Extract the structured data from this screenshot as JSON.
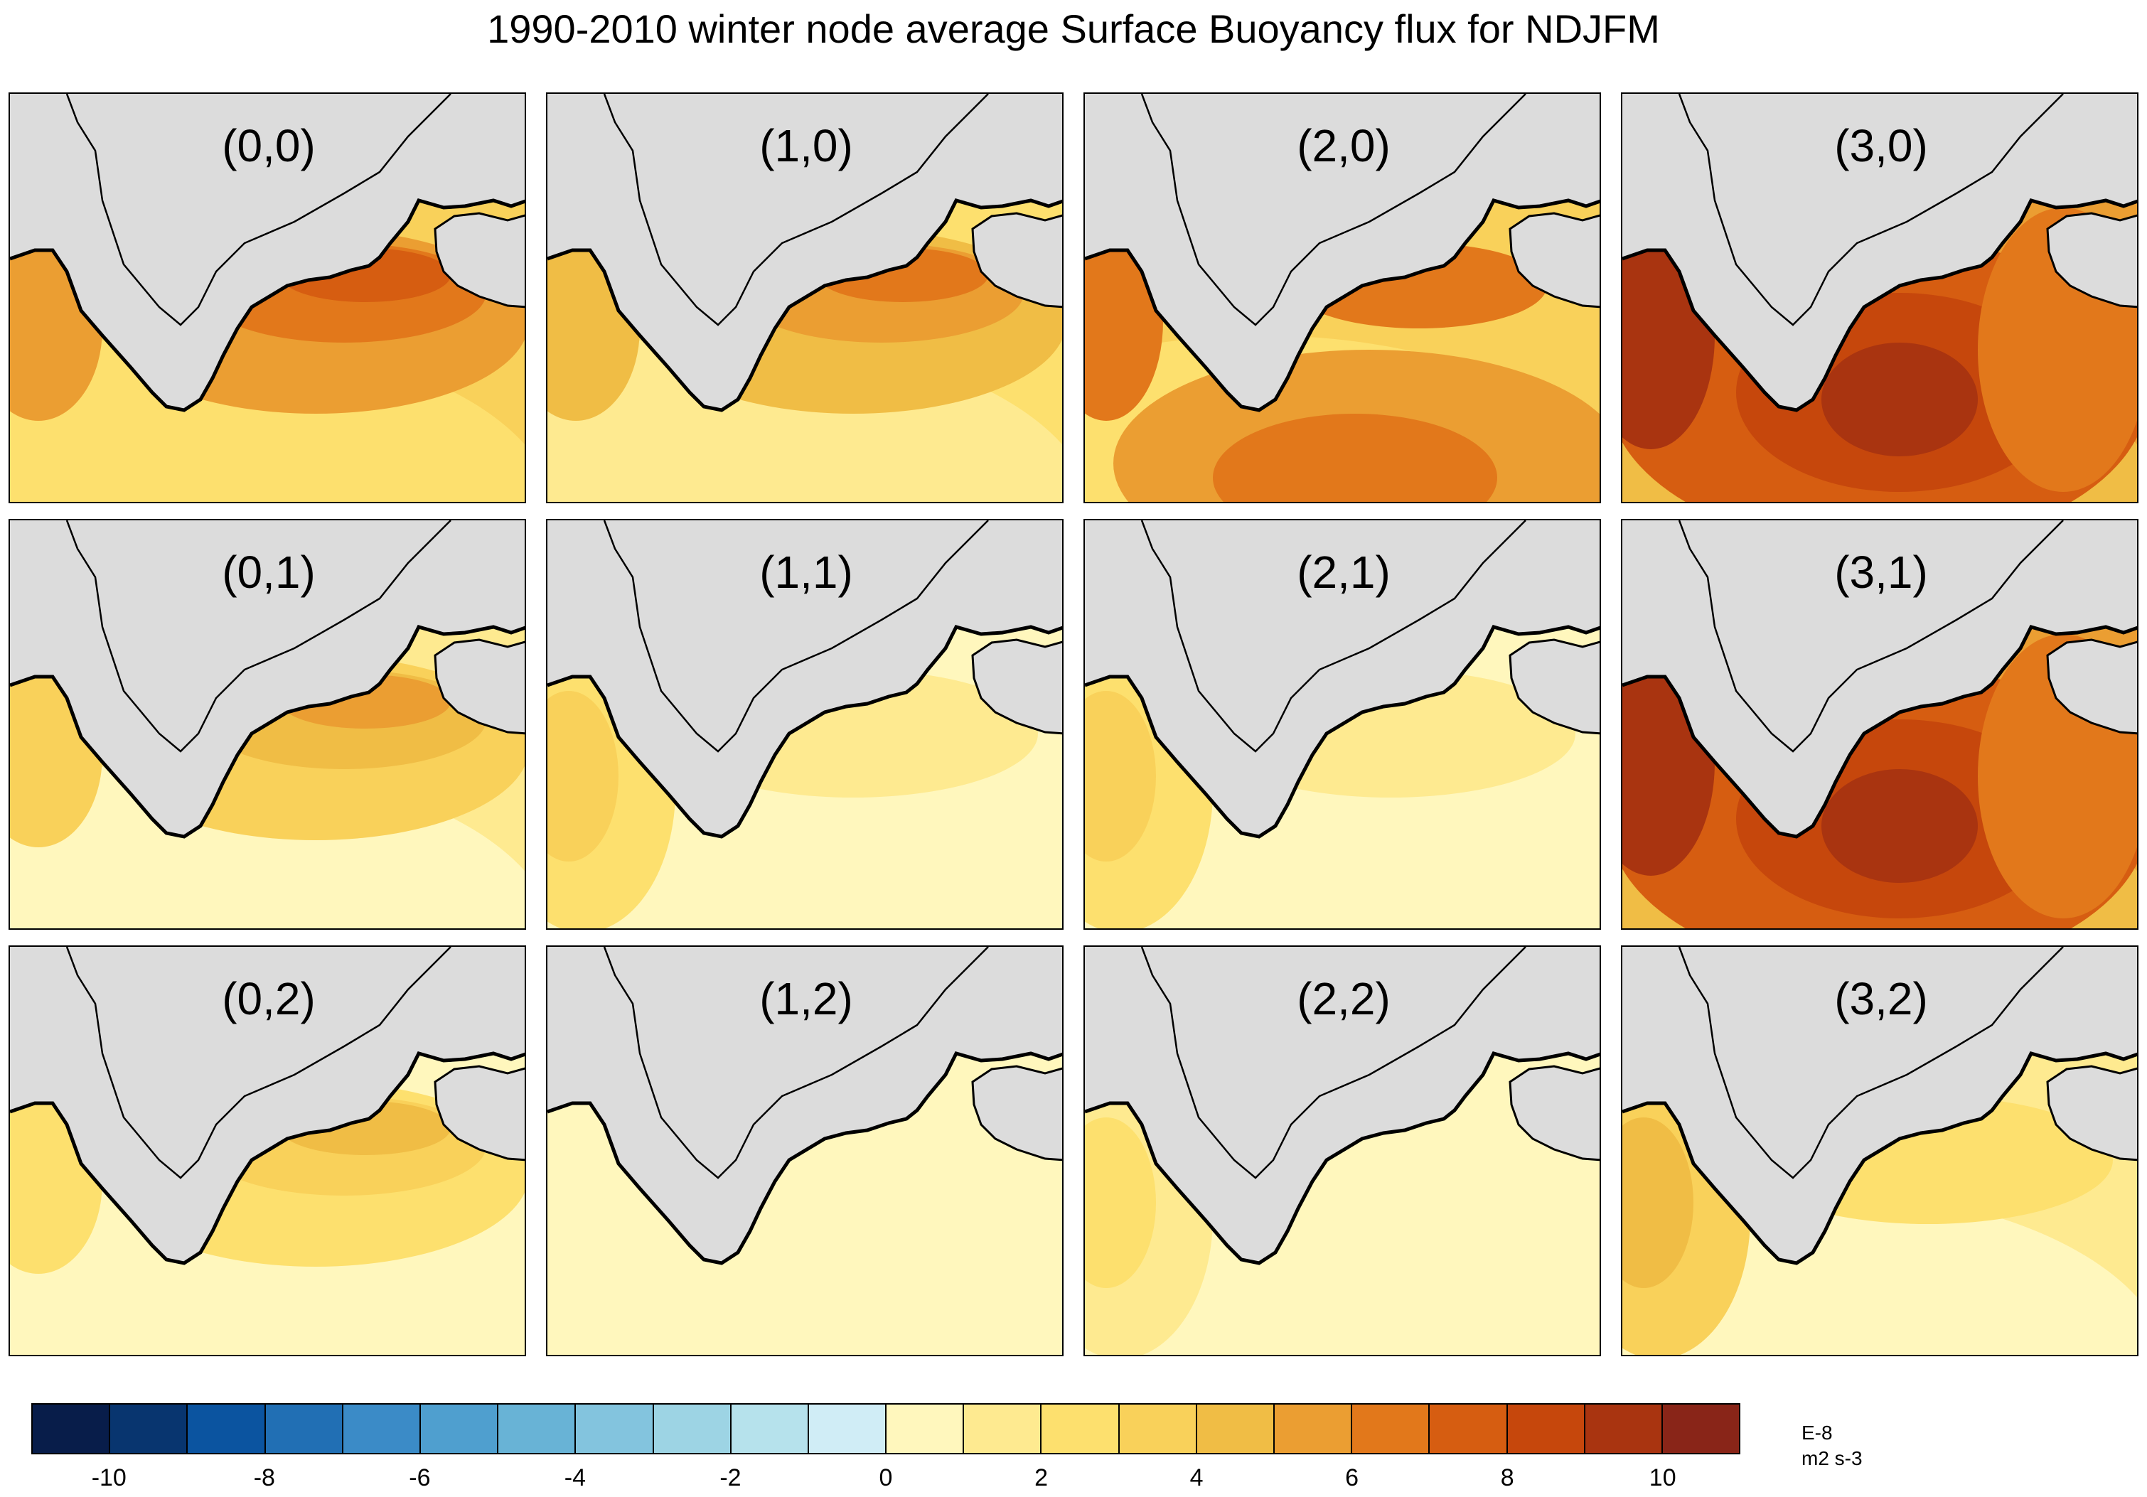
{
  "title": "1990-2010 winter node average Surface Buoyancy flux for NDJFM",
  "panels": [
    {
      "label": "(0,0)",
      "intensity": 7,
      "hot": "shelf"
    },
    {
      "label": "(1,0)",
      "intensity": 6,
      "hot": "shelf"
    },
    {
      "label": "(2,0)",
      "intensity": 7,
      "hot": "south"
    },
    {
      "label": "(3,0)",
      "intensity": 9,
      "hot": "center"
    },
    {
      "label": "(0,1)",
      "intensity": 5,
      "hot": "shelf"
    },
    {
      "label": "(1,1)",
      "intensity": 4,
      "hot": "west"
    },
    {
      "label": "(2,1)",
      "intensity": 4,
      "hot": "west"
    },
    {
      "label": "(3,1)",
      "intensity": 9,
      "hot": "center"
    },
    {
      "label": "(0,2)",
      "intensity": 4,
      "hot": "shelf"
    },
    {
      "label": "(1,2)",
      "intensity": 2,
      "hot": "none"
    },
    {
      "label": "(2,2)",
      "intensity": 3,
      "hot": "west"
    },
    {
      "label": "(3,2)",
      "intensity": 5,
      "hot": "west"
    }
  ],
  "colorbar": {
    "colors": [
      "#081d4a",
      "#08356f",
      "#0b54a0",
      "#216fb4",
      "#3b8bc7",
      "#4f9fcf",
      "#68b3d6",
      "#83c4de",
      "#9dd4e4",
      "#b6e2ec",
      "#d0edf6",
      "#fff7bd",
      "#feea90",
      "#fde06e",
      "#f9d15a",
      "#f0bd45",
      "#eb9e32",
      "#e2781b",
      "#d65d11",
      "#c6470c",
      "#a93410",
      "#892518"
    ],
    "tick_labels": [
      "-10",
      "-8",
      "-6",
      "-4",
      "-2",
      "0",
      "2",
      "4",
      "6",
      "8",
      "10"
    ],
    "tick_values": [
      -10,
      -8,
      -6,
      -4,
      -2,
      0,
      2,
      4,
      6,
      8,
      10
    ],
    "min": -11,
    "max": 11,
    "units_line1": "E-8",
    "units_line2": "m2 s-3"
  }
}
